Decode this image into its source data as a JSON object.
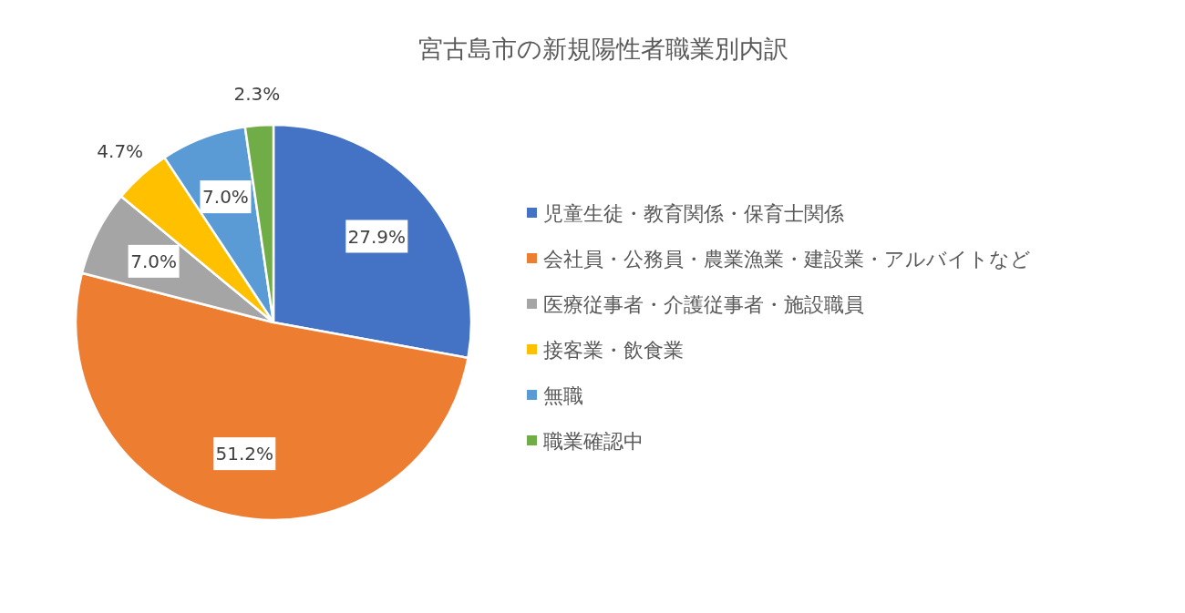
{
  "chart_data": {
    "type": "pie",
    "title": "宮古島市の新規陽性者職業別内訳",
    "categories": [
      "児童生徒・教育関係・保育士関係",
      "会社員・公務員・農業漁業・建設業・アルバイトなど",
      "医療従事者・介護従事者・施設職員",
      "接客業・飲食業",
      "無職",
      "職業確認中"
    ],
    "values": [
      27.9,
      51.2,
      7.0,
      4.7,
      7.0,
      2.3
    ],
    "colors": [
      "#4472c4",
      "#ed7d31",
      "#a5a5a5",
      "#ffc000",
      "#5b9bd5",
      "#70ad47"
    ],
    "value_labels": [
      "27.9%",
      "51.2%",
      "7.0%",
      "4.7%",
      "7.0%",
      "2.3%"
    ],
    "legend": "right"
  }
}
